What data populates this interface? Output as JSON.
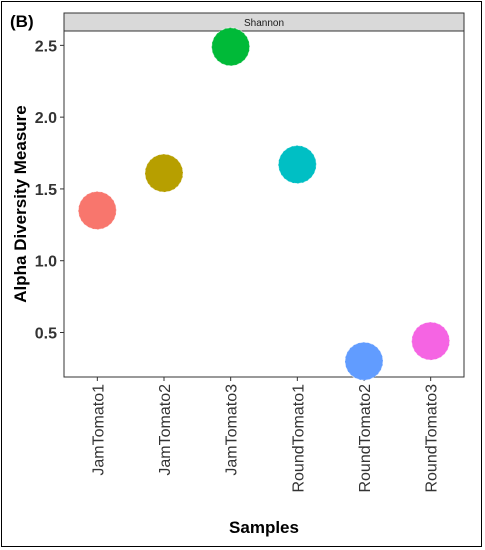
{
  "panel_label": "(B)",
  "chart_data": {
    "type": "scatter",
    "facet_label": "Shannon",
    "xlabel": "Samples",
    "ylabel": "Alpha Diversity Measure",
    "categories": [
      "JamTomato1",
      "JamTomato2",
      "JamTomato3",
      "RoundTomato1",
      "RoundTomato2",
      "RoundTomato3"
    ],
    "values": [
      1.35,
      1.61,
      2.49,
      1.67,
      0.3,
      0.44
    ],
    "colors": [
      "#F8766D",
      "#B79F00",
      "#00BA38",
      "#00BFC4",
      "#619CFF",
      "#F564E3"
    ],
    "yticks": [
      0.5,
      1.0,
      1.5,
      2.0,
      2.5
    ],
    "ytick_labels": [
      "0.5",
      "1.0",
      "1.5",
      "2.0",
      "2.5"
    ],
    "ylim": [
      0.19,
      2.6
    ],
    "grid": false
  }
}
